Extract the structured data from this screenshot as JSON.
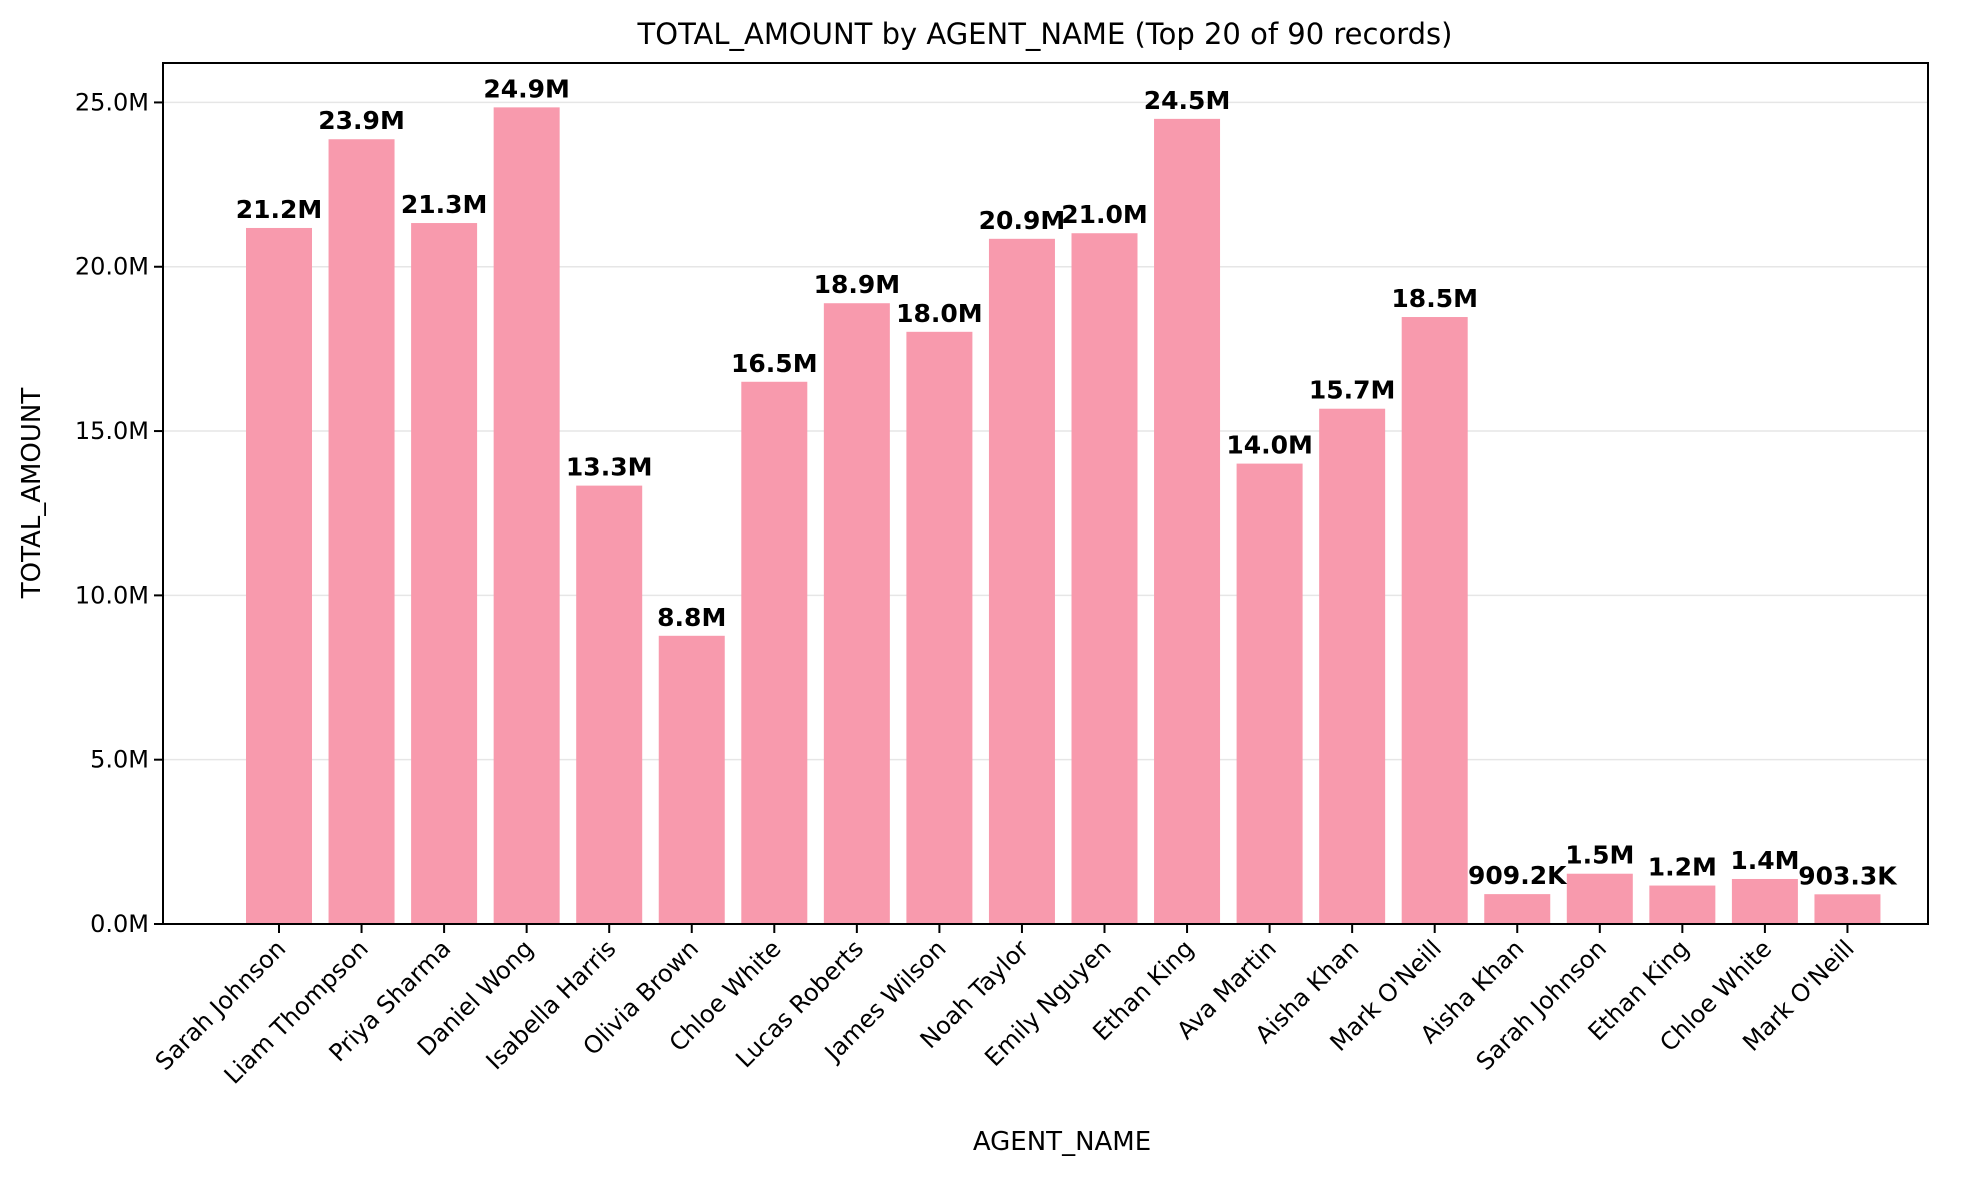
{
  "chart_data": {
    "type": "bar",
    "title": "TOTAL_AMOUNT by AGENT_NAME (Top 20 of 90 records)",
    "xlabel": "AGENT_NAME",
    "ylabel": "TOTAL_AMOUNT",
    "ylim": [
      0,
      26200000
    ],
    "y_ticks": [
      0,
      5000000,
      10000000,
      15000000,
      20000000,
      25000000
    ],
    "y_tick_labels": [
      "0.0M",
      "5.0M",
      "10.0M",
      "15.0M",
      "20.0M",
      "25.0M"
    ],
    "grid": "horizontal",
    "bar_color": "#f89aad",
    "categories": [
      "Sarah Johnson",
      "Liam Thompson",
      "Priya Sharma",
      "Daniel Wong",
      "Isabella Harris",
      "Olivia Brown",
      "Chloe White",
      "Lucas Roberts",
      "James Wilson",
      "Noah Taylor",
      "Emily Nguyen",
      "Ethan King",
      "Ava Martin",
      "Aisha Khan",
      "Mark O'Neill",
      "Aisha Khan",
      "Sarah Johnson",
      "Ethan King",
      "Chloe White",
      "Mark O'Neill"
    ],
    "values": [
      21180000,
      23880000,
      21330000,
      24850000,
      13340000,
      8770000,
      16500000,
      18890000,
      18020000,
      20850000,
      21020000,
      24500000,
      14010000,
      15680000,
      18470000,
      909200,
      1530000,
      1170000,
      1370000,
      903300
    ],
    "data_labels": [
      "21.2M",
      "23.9M",
      "21.3M",
      "24.9M",
      "13.3M",
      "8.8M",
      "16.5M",
      "18.9M",
      "18.0M",
      "20.9M",
      "21.0M",
      "24.5M",
      "14.0M",
      "15.7M",
      "18.5M",
      "909.2K",
      "1.5M",
      "1.2M",
      "1.4M",
      "903.3K"
    ]
  }
}
